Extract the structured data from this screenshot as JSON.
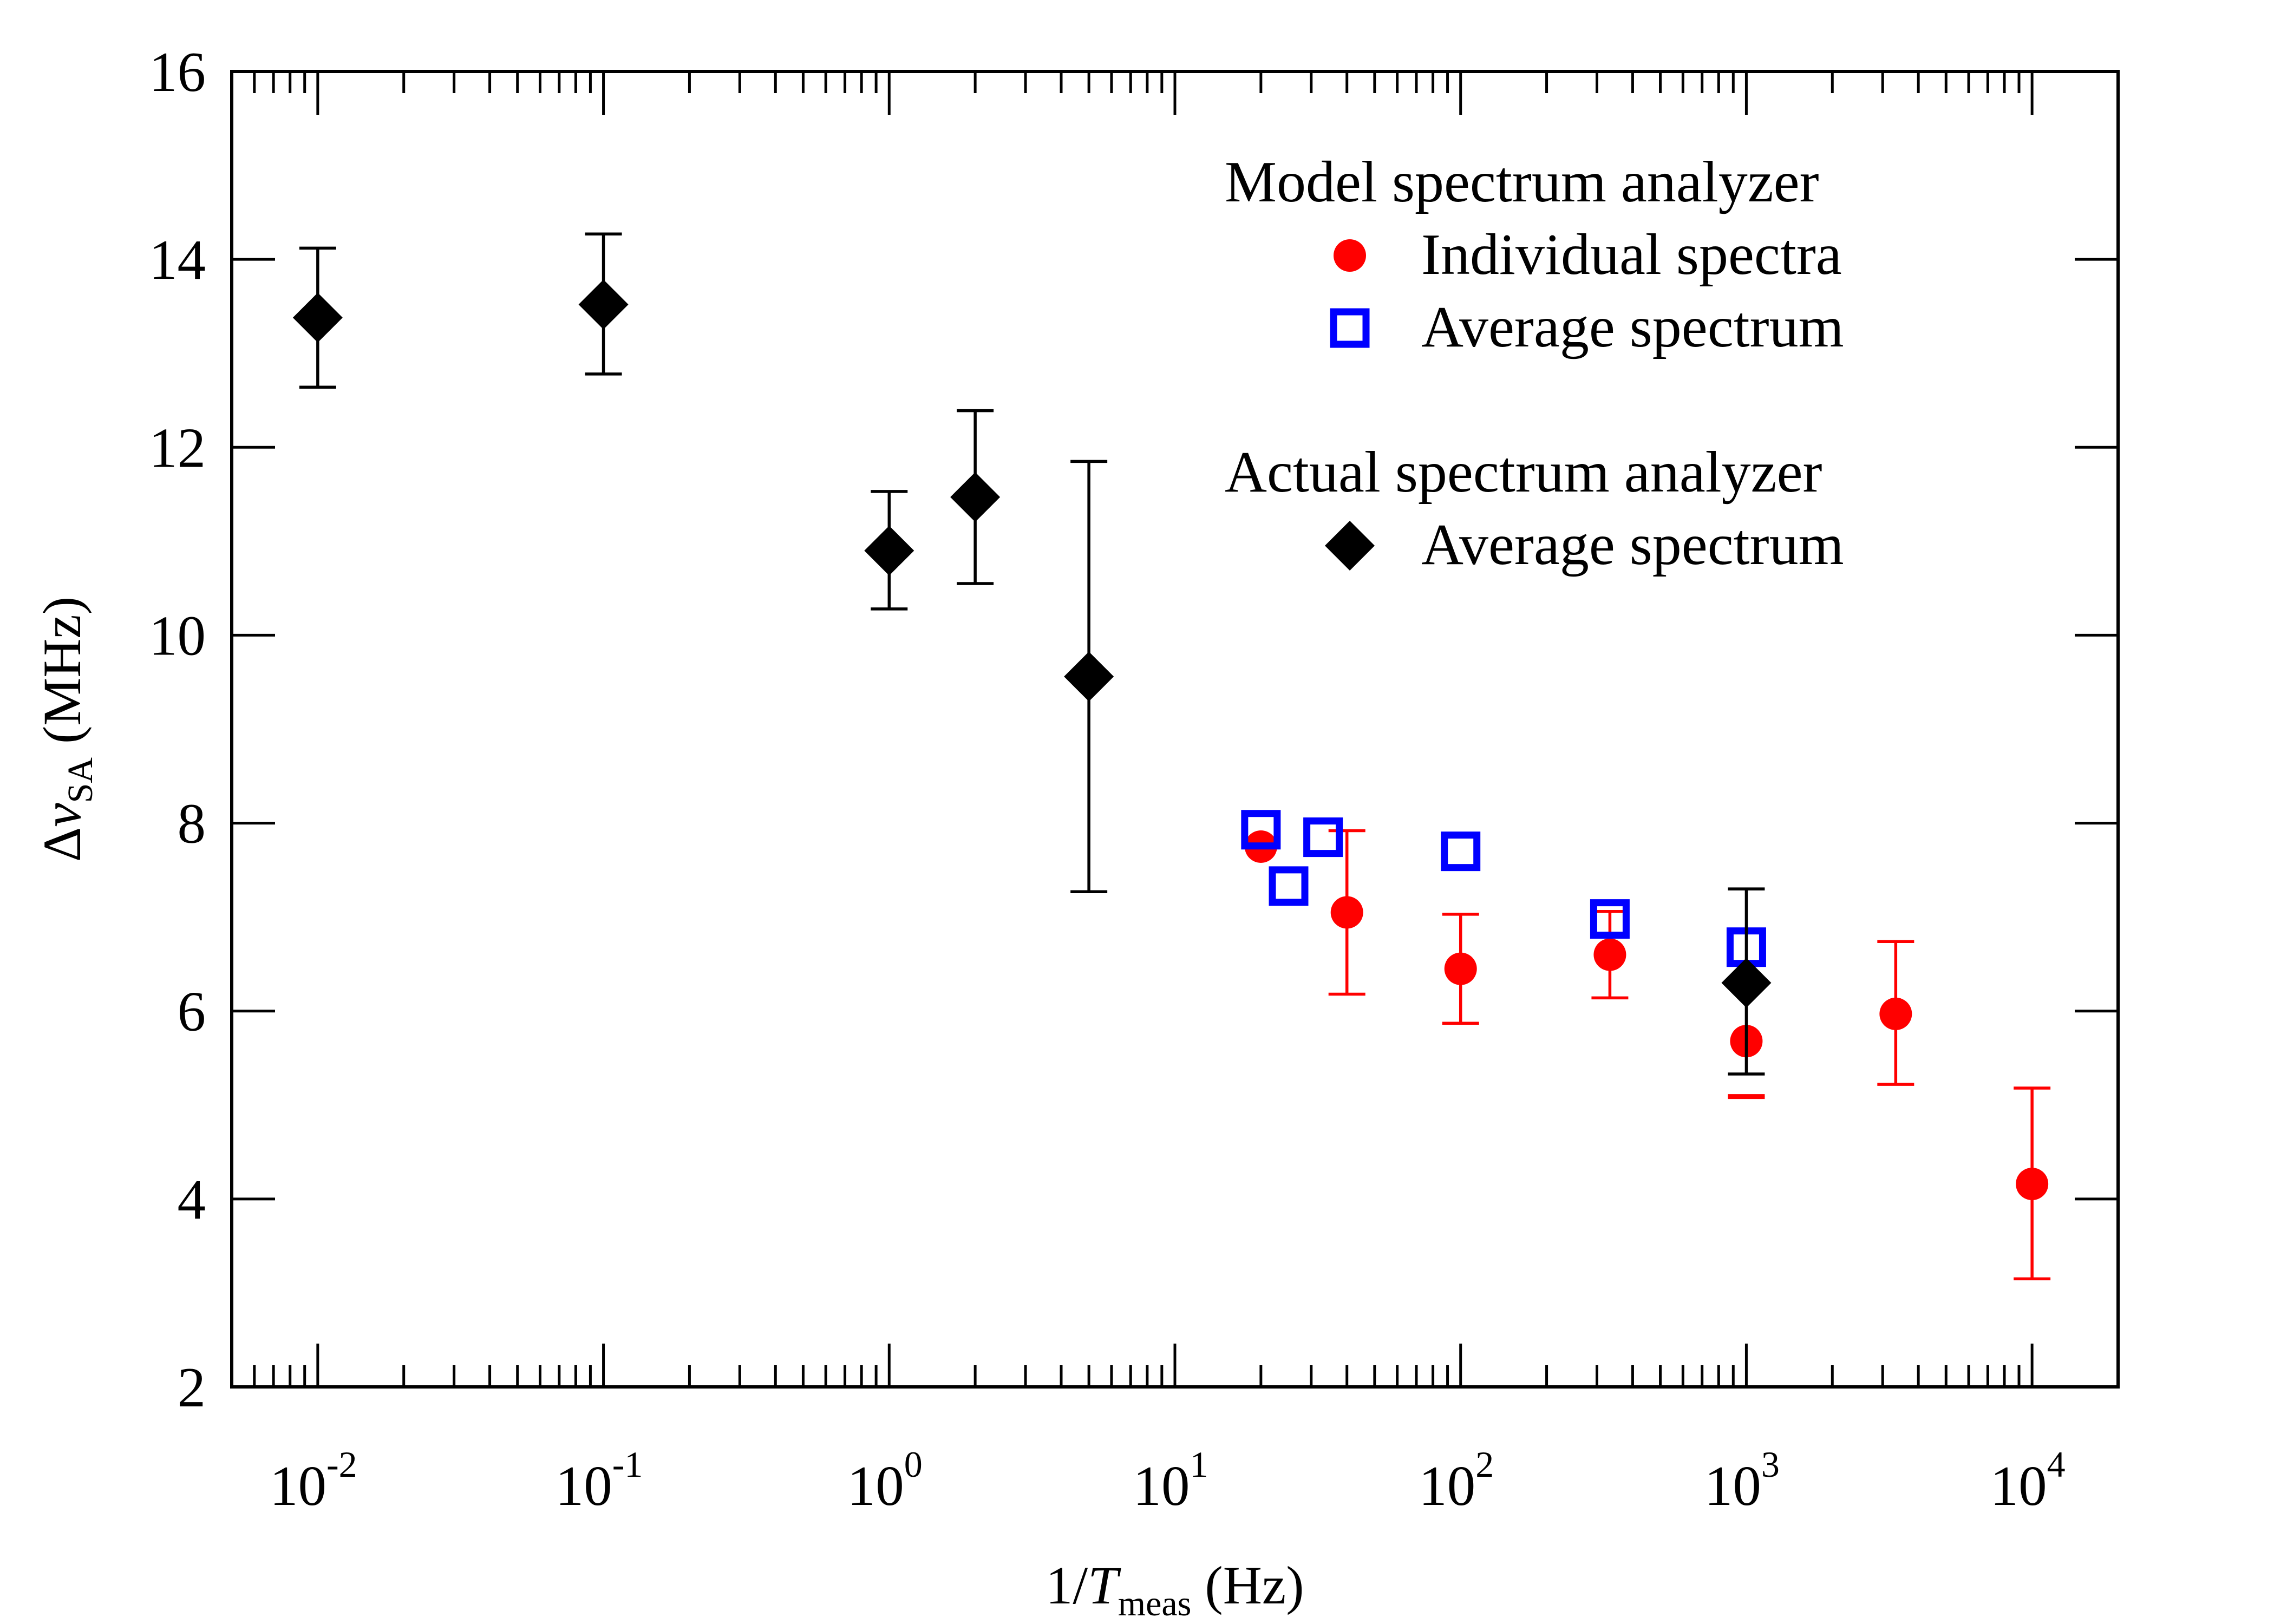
{
  "chart_data": {
    "type": "scatter",
    "x_scale": "log",
    "xlim": [
      0.005,
      20000
    ],
    "ylim": [
      2,
      16
    ],
    "grid": false,
    "legend_position": "top-right",
    "x_ticks": [
      {
        "base": "10",
        "exp": "-2",
        "value": 0.01
      },
      {
        "base": "10",
        "exp": "-1",
        "value": 0.1
      },
      {
        "base": "10",
        "exp": "0",
        "value": 1
      },
      {
        "base": "10",
        "exp": "1",
        "value": 10
      },
      {
        "base": "10",
        "exp": "2",
        "value": 100
      },
      {
        "base": "10",
        "exp": "3",
        "value": 1000
      },
      {
        "base": "10",
        "exp": "4",
        "value": 10000
      }
    ],
    "y_ticks": [
      2,
      4,
      6,
      8,
      10,
      12,
      14,
      16
    ],
    "y_tick_labels": [
      "2",
      "4",
      "6",
      "8",
      "10",
      "12",
      "14",
      "16"
    ],
    "xlabel": {
      "prefix": "1/",
      "var": "T",
      "sub": "meas",
      "suffix": " (Hz)"
    },
    "ylabel": {
      "prefix": "Δ",
      "var": "ν",
      "sub": "SA",
      "suffix": " (MHz)"
    },
    "legend": {
      "group1": "Model spectrum analyzer",
      "group2": "Actual spectrum analyzer"
    },
    "series": [
      {
        "name": "Individual spectra",
        "group": "Model spectrum analyzer",
        "marker": "circle",
        "color": "#ff0000",
        "points": [
          {
            "x": 20,
            "y": 7.75
          },
          {
            "x": 40,
            "y": 7.05,
            "lo": 6.18,
            "hi": 7.92
          },
          {
            "x": 100,
            "y": 6.45,
            "lo": 5.87,
            "hi": 7.03
          },
          {
            "x": 333,
            "y": 6.6,
            "lo": 6.14,
            "hi": 7.06
          },
          {
            "x": 1000,
            "y": 5.68,
            "lo": 5.08,
            "hi": 5.1
          },
          {
            "x": 3333,
            "y": 5.97,
            "lo": 5.22,
            "hi": 6.74
          },
          {
            "x": 10000,
            "y": 4.16,
            "lo": 3.15,
            "hi": 5.18
          }
        ]
      },
      {
        "name": "Average spectrum",
        "group": "Model spectrum analyzer",
        "marker": "square-open",
        "color": "#0000ff",
        "points": [
          {
            "x": 20,
            "y": 7.93
          },
          {
            "x": 25,
            "y": 7.33
          },
          {
            "x": 33,
            "y": 7.85
          },
          {
            "x": 100,
            "y": 7.7
          },
          {
            "x": 333,
            "y": 6.98
          },
          {
            "x": 1000,
            "y": 6.68
          }
        ]
      },
      {
        "name": "Average spectrum",
        "group": "Actual spectrum analyzer",
        "marker": "diamond",
        "color": "#000000",
        "points": [
          {
            "x": 0.01,
            "y": 13.38,
            "lo": 12.64,
            "hi": 14.12
          },
          {
            "x": 0.1,
            "y": 13.52,
            "lo": 12.78,
            "hi": 14.27
          },
          {
            "x": 1,
            "y": 10.9,
            "lo": 10.28,
            "hi": 11.53
          },
          {
            "x": 2,
            "y": 11.47,
            "lo": 10.55,
            "hi": 12.39
          },
          {
            "x": 5,
            "y": 9.56,
            "lo": 7.27,
            "hi": 11.85
          },
          {
            "x": 1000,
            "y": 6.3,
            "lo": 5.33,
            "hi": 7.3
          }
        ]
      }
    ]
  }
}
